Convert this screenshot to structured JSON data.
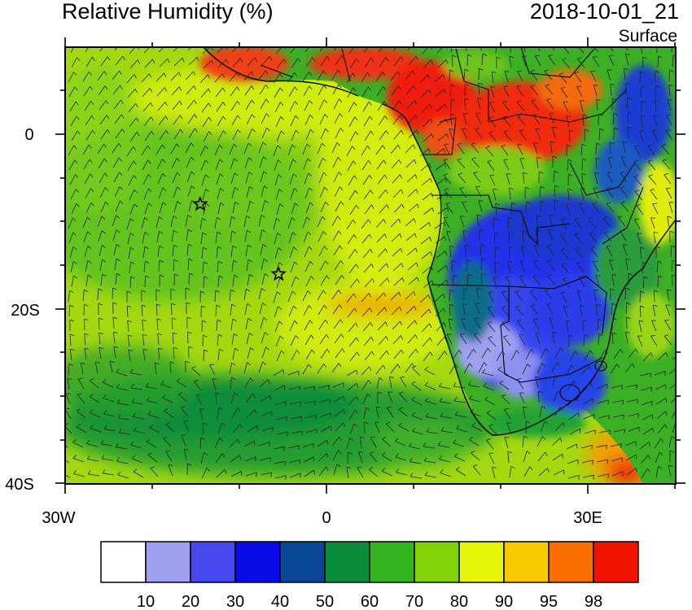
{
  "header": {
    "title": "Relative Humidity (%)",
    "datetime": "2018-10-01_21",
    "level": "Surface"
  },
  "axes": {
    "x_labels": [
      "30W",
      "0",
      "30E"
    ],
    "y_labels": [
      "0",
      "20S",
      "40S"
    ]
  },
  "markers": [
    {
      "name": "star-marker-1",
      "lon": -14.5,
      "lat": -8.0
    },
    {
      "name": "star-marker-2",
      "lon": -5.5,
      "lat": -16.0
    }
  ],
  "colorbar": {
    "labels": [
      "10",
      "20",
      "30",
      "40",
      "50",
      "60",
      "70",
      "80",
      "90",
      "95",
      "98"
    ],
    "colors": [
      "#ffffff",
      "#a0a0f0",
      "#4848f0",
      "#0a0ae6",
      "#0a4696",
      "#0a8c3c",
      "#32b41e",
      "#82d20a",
      "#e6f50a",
      "#fac800",
      "#fa6e00",
      "#f01400"
    ]
  },
  "palette": {
    "ocean_base": "#9cd816",
    "green_mid": "#3cb424",
    "green_dark": "#0d8c3c",
    "yellow": "#dff20a",
    "orange": "#fab400",
    "red": "#f01400",
    "blue": "#1a2ee6",
    "blue_light": "#6a6ef0"
  }
}
